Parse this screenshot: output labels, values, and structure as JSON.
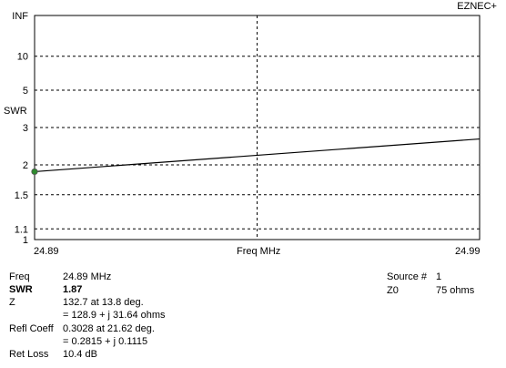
{
  "app": {
    "brand": "EZNEC+"
  },
  "chart_data": {
    "type": "line",
    "xlabel": "Freq MHz",
    "ylabel": "SWR",
    "xlim": [
      24.89,
      24.99
    ],
    "x_tick_labels": [
      "24.89",
      "24.99"
    ],
    "y_scale": "swr",
    "y_ticks": [
      {
        "value": 1,
        "label": "1"
      },
      {
        "value": 1.1,
        "label": "1.1"
      },
      {
        "value": 1.5,
        "label": "1.5"
      },
      {
        "value": 2,
        "label": "2"
      },
      {
        "value": 3,
        "label": "3"
      },
      {
        "value": 5,
        "label": "5"
      },
      {
        "value": 10,
        "label": "10"
      },
      {
        "value": "INF",
        "label": "INF"
      }
    ],
    "grid": true,
    "series": [
      {
        "x": [
          24.89,
          24.99
        ],
        "y": [
          1.87,
          2.63
        ]
      }
    ],
    "marker": {
      "x": 24.89,
      "y": 1.87,
      "color": "#2e8b2e"
    }
  },
  "readout": {
    "freq": {
      "label": "Freq",
      "value": "24.89 MHz"
    },
    "swr": {
      "label": "SWR",
      "value": "1.87"
    },
    "z": {
      "label": "Z",
      "line1": "132.7 at 13.8 deg.",
      "line2": "= 128.9 + j 31.64 ohms"
    },
    "refl": {
      "label": "Refl Coeff",
      "line1": "0.3028 at 21.62 deg.",
      "line2": "= 0.2815 + j 0.1115"
    },
    "retloss": {
      "label": "Ret Loss",
      "value": "10.4 dB"
    },
    "source": {
      "label": "Source #",
      "value": "1"
    },
    "z0": {
      "label": "Z0",
      "value": "75 ohms"
    }
  }
}
